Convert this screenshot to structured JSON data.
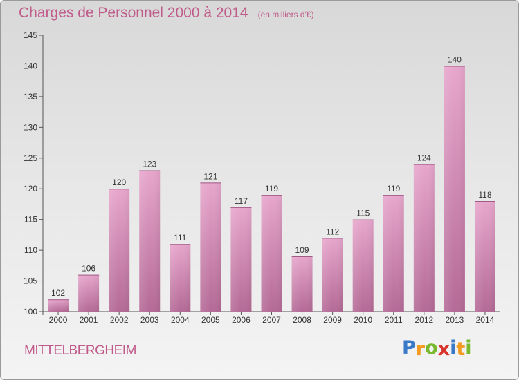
{
  "title": {
    "main": "Charges de Personnel 2000 à 2014",
    "sub": "(en milliers d'€)"
  },
  "commune": "MITTELBERGHEIM",
  "logo": {
    "letters": [
      "P",
      "r",
      "o",
      "x",
      "i",
      "t",
      "i"
    ],
    "colors": [
      "#3a78c8",
      "#f39a1f",
      "#7ab82e",
      "#d9342b",
      "#3a78c8",
      "#f39a1f",
      "#7ab82e"
    ]
  },
  "colors": {
    "bar_top": "#e7a6cc",
    "bar_bottom": "#b46a96",
    "label": "#333333",
    "accent": "#c05a8a"
  },
  "chart_data": {
    "type": "bar",
    "categories": [
      "2000",
      "2001",
      "2002",
      "2003",
      "2004",
      "2005",
      "2006",
      "2007",
      "2008",
      "2009",
      "2010",
      "2011",
      "2012",
      "2013",
      "2014"
    ],
    "values": [
      102,
      106,
      120,
      123,
      111,
      121,
      117,
      119,
      109,
      112,
      115,
      119,
      124,
      140,
      118
    ],
    "ylim": [
      100,
      145
    ],
    "yticks": [
      100,
      105,
      110,
      115,
      120,
      125,
      130,
      135,
      140,
      145
    ],
    "grid": false,
    "xlabel": "",
    "ylabel": ""
  }
}
